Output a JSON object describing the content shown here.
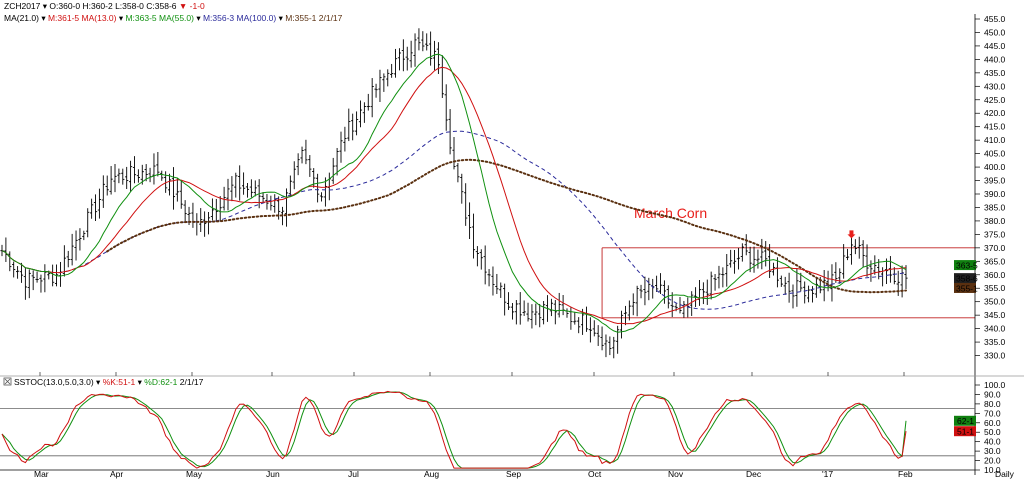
{
  "colors": {
    "price_bar": "#000000",
    "ma21": "#d01010",
    "ma13": "#109010",
    "ma55": "#2b2b9b",
    "ma100": "#5a3010",
    "box": "#c02020",
    "k_line": "#d01010",
    "d_line": "#109010",
    "grid": "#e6e6e6"
  },
  "header": {
    "symbol": "ZCH2017",
    "ohlc": "O:360-0 H:360-2 L:358-0 C:358-6",
    "change": "-1-0",
    "ma21": "M:361-5 MA(13.0)",
    "ma13": "M:363-5 MA(55.0)",
    "ma55": "M:356-3 MA(100.0)",
    "ma100": "M:355-1 2/1/17",
    "ma_prefix": "MA(21.0)",
    "stoch_prefix": "SSTOC(13.0,5.0,3.0)",
    "stoch_k": "%K:51-1",
    "stoch_d": "%D:62-1",
    "stoch_date": "2/1/17"
  },
  "annotation": {
    "text": "March Corn",
    "color": "#e8201c"
  },
  "x_axis": {
    "labels": [
      "Mar",
      "Apr",
      "May",
      "Jun",
      "Jul",
      "Aug",
      "Sep",
      "Oct",
      "Nov",
      "Dec",
      "'17",
      "Feb",
      "Daily"
    ]
  },
  "badges": [
    {
      "text": "363-5",
      "value": 363.6,
      "bg": "#108010",
      "fg": "#ffffff"
    },
    {
      "text": "358-6",
      "value": 358.75,
      "bg": "#202020",
      "fg": "#ffffff"
    },
    {
      "text": "355-1",
      "value": 355.1,
      "bg": "#5a3010",
      "fg": "#ffffff"
    }
  ],
  "stoch_badges": [
    {
      "text": "62-1",
      "value": 62.1,
      "bg": "#108010",
      "fg": "#ffffff"
    },
    {
      "text": "51-1",
      "value": 51.1,
      "bg": "#d01010",
      "fg": "#ffffff"
    }
  ],
  "chart_data": [
    {
      "type": "line",
      "title": "ZCH2017",
      "subtitle": "March Corn",
      "xlabel": "",
      "ylabel": "",
      "ylim": [
        325,
        455
      ],
      "yticks": [
        "330.0",
        "335.0",
        "340.0",
        "345.0",
        "350.0",
        "355.0",
        "360.0",
        "365.0",
        "370.0",
        "375.0",
        "380.0",
        "385.0",
        "390.0",
        "395.0",
        "400.0",
        "405.0",
        "410.0",
        "415.0",
        "420.0",
        "425.0",
        "430.0",
        "435.0",
        "440.0",
        "445.0",
        "450.0",
        "455.0"
      ],
      "box": {
        "top": 370,
        "bottom": 344,
        "start_index": 154,
        "end_index": 240
      },
      "signal_arrow": {
        "index": 218,
        "value": 373.5
      },
      "series": [
        {
          "key": "price",
          "kind": "ohlc_bars"
        },
        {
          "key": "ma21",
          "kind": "line"
        },
        {
          "key": "ma13",
          "kind": "line"
        },
        {
          "key": "ma55",
          "kind": "dashed"
        },
        {
          "key": "ma100",
          "kind": "dotted"
        }
      ],
      "anchors": {
        "dates": [
          "Mar",
          "Apr",
          "May",
          "Jun",
          "Jul",
          "Aug",
          "Sep",
          "Oct",
          "Nov",
          "Dec",
          "'17",
          "Feb"
        ],
        "index": [
          0,
          6,
          14,
          28,
          40,
          50,
          60,
          72,
          77,
          82,
          88,
          94,
          100,
          106,
          112,
          116,
          121,
          126,
          130,
          135,
          141,
          146,
          151,
          156,
          162,
          168,
          174,
          180,
          186,
          190,
          196,
          202,
          208,
          214,
          218,
          222,
          226,
          232
        ],
        "close": [
          369,
          358,
          360,
          396,
          399,
          378,
          394,
          385,
          404,
          390,
          412,
          425,
          437,
          446,
          440,
          400,
          372,
          358,
          350,
          346,
          348,
          344,
          342,
          333,
          352,
          355,
          345,
          354,
          362,
          368,
          365,
          355,
          355,
          358,
          372,
          365,
          362,
          358.75
        ]
      }
    },
    {
      "type": "line",
      "title": "SSTOC(13.0,5.0,3.0)",
      "ylim": [
        10,
        100
      ],
      "yticks": [
        "10.0",
        "20.0",
        "30.0",
        "40.0",
        "50.0",
        "60.0",
        "70.0",
        "80.0",
        "90.0",
        "100.0"
      ],
      "bands": [
        25,
        75
      ],
      "series": [
        {
          "name": "%K",
          "last": 51.1
        },
        {
          "name": "%D",
          "last": 62.1
        }
      ]
    }
  ]
}
